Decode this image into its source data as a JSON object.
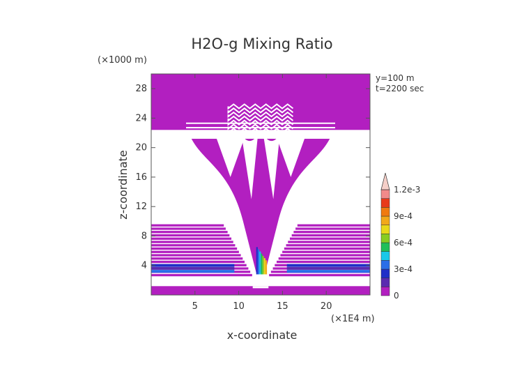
{
  "chart_data": {
    "type": "heatmap",
    "title": "H2O-g Mixing Ratio",
    "xlabel": "x-coordinate",
    "ylabel": "z-coordinate",
    "x_unit": "(×1E4 m)",
    "y_unit": "(×1000 m)",
    "xlim": [
      0,
      25
    ],
    "ylim": [
      0,
      30
    ],
    "x_ticks": [
      5,
      10,
      15,
      20
    ],
    "y_ticks": [
      4,
      8,
      12,
      16,
      20,
      24,
      28
    ],
    "annotations": [
      "y=100 m",
      "t=2200 sec"
    ],
    "colorbar": {
      "tick_labels": [
        "0",
        "3e-4",
        "6e-4",
        "9e-4",
        "1.2e-3"
      ],
      "tick_values": [
        0,
        0.0003,
        0.0006,
        0.0009,
        0.0012
      ],
      "levels": [
        0,
        0.0001,
        0.0002,
        0.0003,
        0.0004,
        0.0005,
        0.0006,
        0.0007,
        0.0008,
        0.0009,
        0.001,
        0.0011,
        0.0012
      ],
      "colors": [
        "#b21fc0",
        "#5a2bb0",
        "#1f2fc8",
        "#2a6ee8",
        "#19c8e8",
        "#1fbf5a",
        "#88cc22",
        "#e8d81a",
        "#f2a81a",
        "#f07a10",
        "#e83a1a",
        "#f28a8a",
        "#f5cfc8"
      ],
      "extend": "max"
    }
  }
}
